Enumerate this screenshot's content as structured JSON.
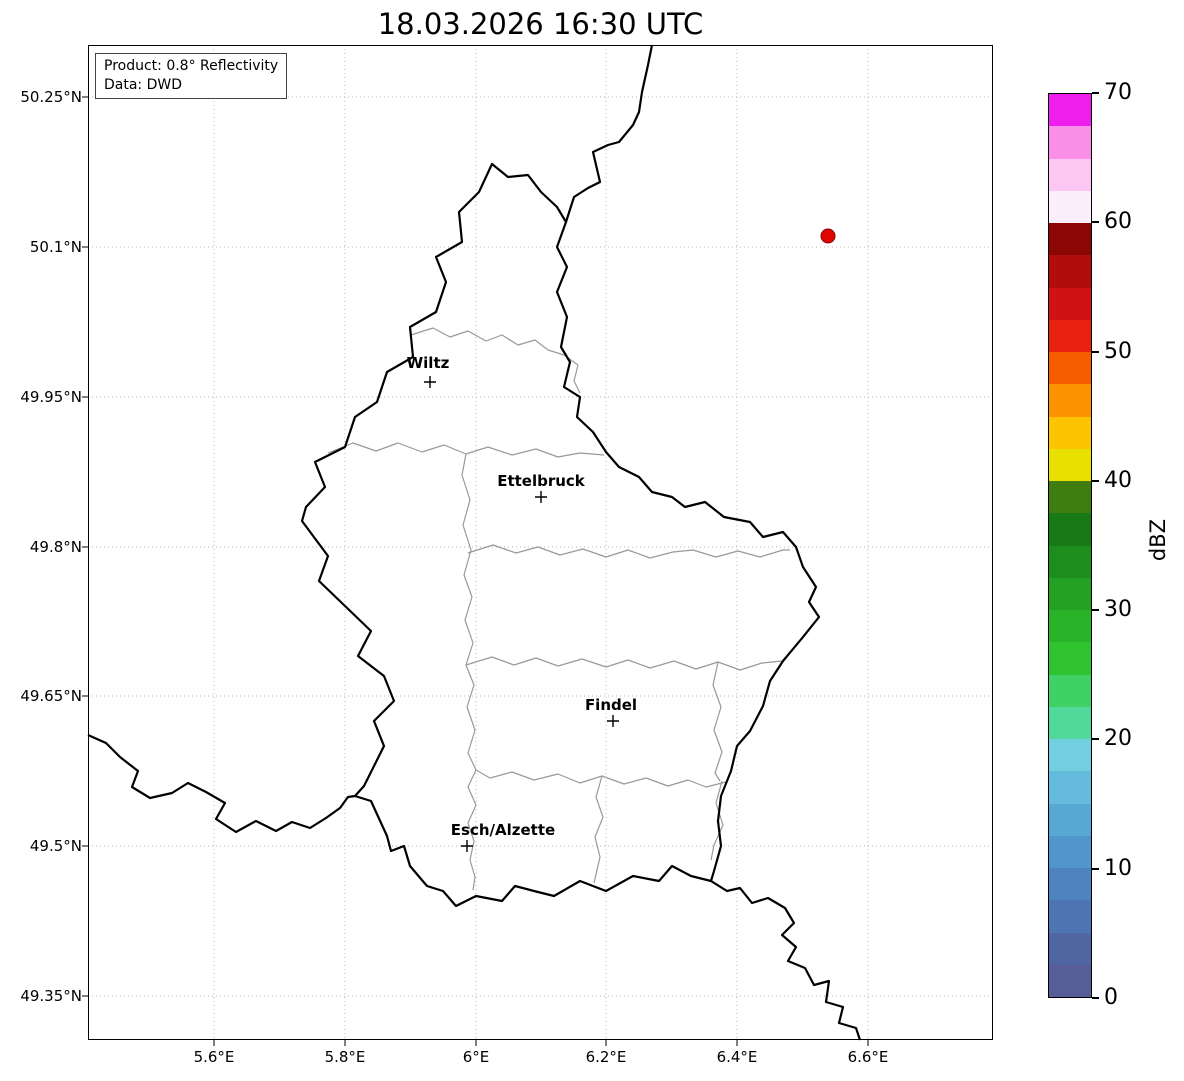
{
  "title": "18.03.2026 16:30 UTC",
  "info_box": {
    "product": "Product: 0.8° Reflectivity",
    "source": "Data: DWD"
  },
  "axes": {
    "y_ticks": [
      "50.25°N",
      "50.1°N",
      "49.95°N",
      "49.8°N",
      "49.65°N",
      "49.5°N",
      "49.35°N"
    ],
    "x_ticks": [
      "5.6°E",
      "5.8°E",
      "6°E",
      "6.2°E",
      "6.4°E",
      "6.6°E"
    ]
  },
  "map": {
    "cities": [
      "Wiltz",
      "Ettelbruck",
      "Findel",
      "Esch/Alzette"
    ],
    "radar_dot_color": "#e10600"
  },
  "colorbar": {
    "label": "dBZ",
    "ticks": [
      "0",
      "10",
      "20",
      "30",
      "40",
      "50",
      "60",
      "70"
    ],
    "range_min": 0,
    "range_max": 70,
    "colors_bottom_to_top": [
      "#575d96",
      "#5066a3",
      "#4e74b2",
      "#4d84c0",
      "#5095cb",
      "#58a8d4",
      "#65bbdb",
      "#72cfe0",
      "#51d99c",
      "#3fd166",
      "#2fc42f",
      "#29b329",
      "#23a123",
      "#1d8e1d",
      "#177a17",
      "#3f7d13",
      "#e8e000",
      "#fcc400",
      "#fc9200",
      "#f55d00",
      "#e82010",
      "#d01212",
      "#b30c0c",
      "#8c0606",
      "#fdeefb",
      "#fcc7f3",
      "#f98fe6",
      "#ee1fee"
    ]
  }
}
